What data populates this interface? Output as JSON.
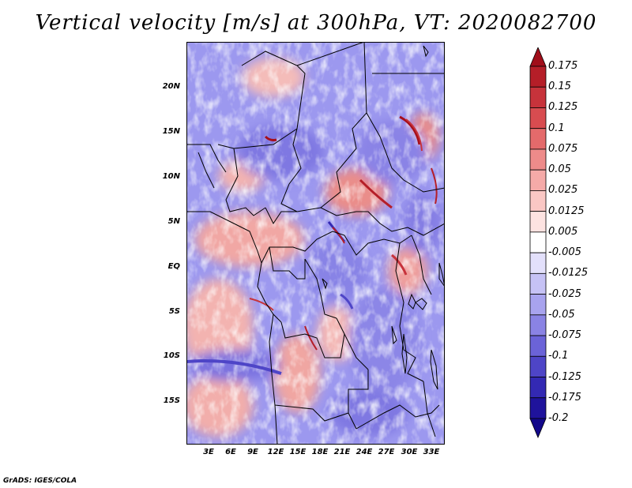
{
  "title": "Vertical velocity [m/s] at 300hPa, VT: 2020082700",
  "footer": "GrADS: IGES/COLA",
  "latitude_labels": [
    "20N",
    "15N",
    "10N",
    "5N",
    "EQ",
    "5S",
    "10S",
    "15S"
  ],
  "longitude_labels": [
    "3E",
    "6E",
    "9E",
    "12E",
    "15E",
    "18E",
    "21E",
    "24E",
    "27E",
    "30E",
    "33E"
  ],
  "colorbar": {
    "levels": [
      "0.175",
      "0.15",
      "0.125",
      "0.1",
      "0.075",
      "0.05",
      "0.025",
      "0.0125",
      "0.005",
      "-0.005",
      "-0.0125",
      "-0.025",
      "-0.05",
      "-0.075",
      "-0.1",
      "-0.125",
      "-0.175",
      "-0.2"
    ],
    "colors": [
      "#a00e1a",
      "#b51e28",
      "#c7333b",
      "#d84c50",
      "#e46a6b",
      "#ee8b8a",
      "#f5aaa8",
      "#fac7c4",
      "#fde3e1",
      "#ffffff",
      "#e3e0fb",
      "#c6c2f5",
      "#a8a3ee",
      "#8a83e4",
      "#6b63d8",
      "#4e45c7",
      "#3329b3",
      "#1f139c",
      "#12088a"
    ]
  },
  "map": {
    "lon_range": [
      0,
      35
    ],
    "lat_range": [
      -20,
      24
    ],
    "field": "vertical velocity at 300hPa"
  }
}
